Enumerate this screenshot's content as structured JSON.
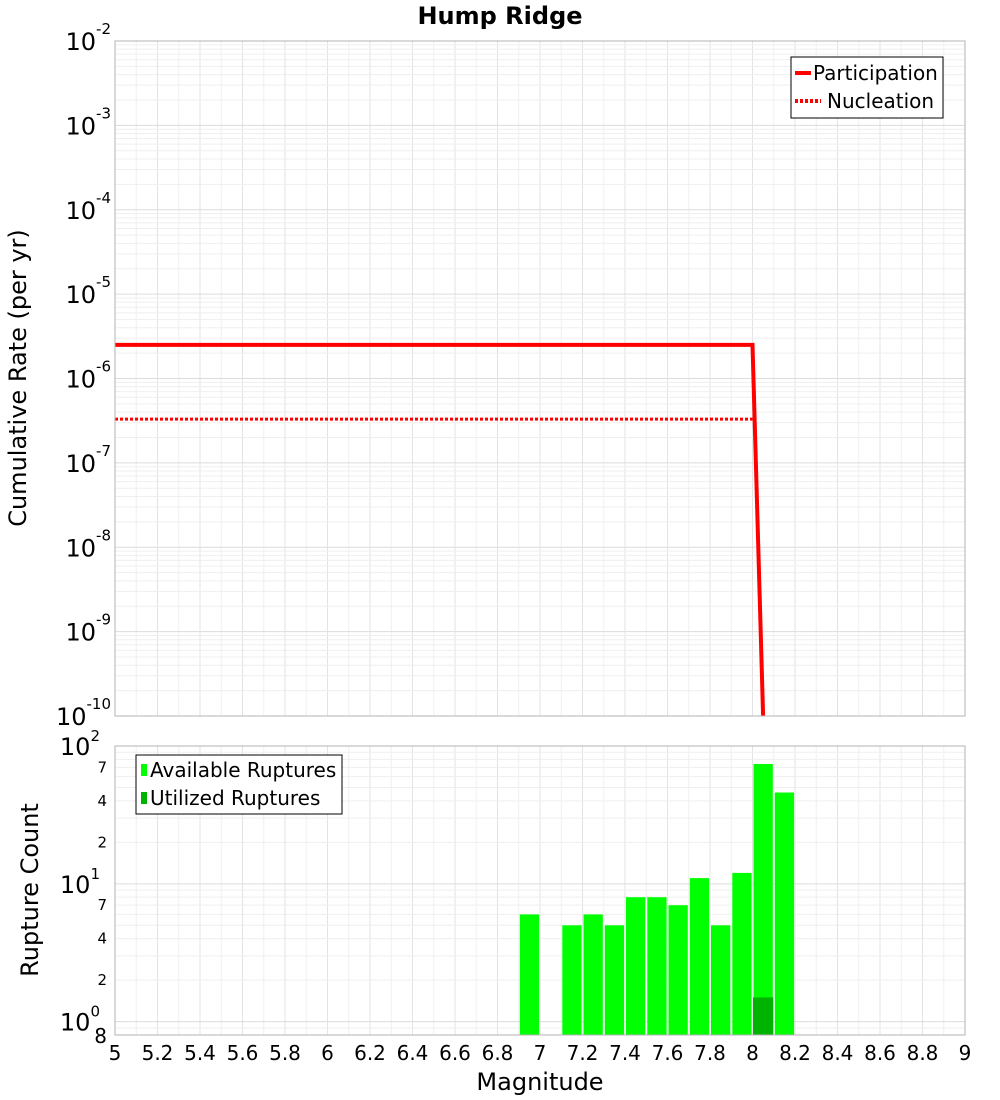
{
  "chart_data": [
    {
      "type": "line",
      "title": "Hump Ridge",
      "xlabel": "",
      "ylabel": "Cumulative Rate (per yr)",
      "yscale": "log",
      "xlim": [
        5,
        9
      ],
      "ylim": [
        1e-10,
        0.01
      ],
      "y_ticks": [
        {
          "base": "10",
          "exp": "-10",
          "value": 1e-10
        },
        {
          "base": "10",
          "exp": "-9",
          "value": 1e-09
        },
        {
          "base": "10",
          "exp": "-8",
          "value": 1e-08
        },
        {
          "base": "10",
          "exp": "-7",
          "value": 1e-07
        },
        {
          "base": "10",
          "exp": "-6",
          "value": 1e-06
        },
        {
          "base": "10",
          "exp": "-5",
          "value": 1e-05
        },
        {
          "base": "10",
          "exp": "-4",
          "value": 0.0001
        },
        {
          "base": "10",
          "exp": "-3",
          "value": 0.001
        },
        {
          "base": "10",
          "exp": "-2",
          "value": 0.01
        }
      ],
      "legend": {
        "position": "top-right"
      },
      "series": [
        {
          "name": "Participation",
          "color": "#ff0000",
          "style": "solid",
          "x": [
            5.0,
            8.0,
            8.05
          ],
          "y": [
            2.5e-06,
            2.5e-06,
            1e-10
          ]
        },
        {
          "name": "Nucleation",
          "color": "#ff0000",
          "style": "dotted",
          "x": [
            5.0,
            8.0
          ],
          "y": [
            3.3e-07,
            3.3e-07
          ]
        }
      ]
    },
    {
      "type": "bar",
      "title": "",
      "xlabel": "Magnitude",
      "ylabel": "Rupture Count",
      "yscale": "log",
      "xlim": [
        5,
        9
      ],
      "ylim": [
        0.8,
        100
      ],
      "bar_width": 0.1,
      "x_ticks": [
        "5",
        "5.2",
        "5.4",
        "5.6",
        "5.8",
        "6",
        "6.2",
        "6.4",
        "6.6",
        "6.8",
        "7",
        "7.2",
        "7.4",
        "7.6",
        "7.8",
        "8",
        "8.2",
        "8.4",
        "8.6",
        "8.8",
        "9"
      ],
      "y_major_ticks": [
        {
          "base": "10",
          "exp": "0",
          "value": 1
        },
        {
          "base": "10",
          "exp": "1",
          "value": 10
        },
        {
          "base": "10",
          "exp": "2",
          "value": 100
        }
      ],
      "y_minor_labels": [
        {
          "label": "8",
          "value": 0.8
        },
        {
          "label": "2",
          "value": 2
        },
        {
          "label": "4",
          "value": 4
        },
        {
          "label": "7",
          "value": 7
        },
        {
          "label": "2",
          "value": 20
        },
        {
          "label": "4",
          "value": 40
        },
        {
          "label": "7",
          "value": 70
        }
      ],
      "legend": {
        "position": "top-left"
      },
      "series": [
        {
          "name": "Available Ruptures",
          "color": "#00ff00",
          "x": [
            6.95,
            7.15,
            7.25,
            7.35,
            7.45,
            7.55,
            7.65,
            7.75,
            7.85,
            7.95,
            8.05,
            8.15
          ],
          "values": [
            6,
            5,
            6,
            5,
            8,
            8,
            7,
            11,
            5,
            12,
            74,
            46
          ]
        },
        {
          "name": "Utilized Ruptures",
          "color": "#00b300",
          "x": [
            8.05
          ],
          "values": [
            1.5
          ]
        }
      ]
    }
  ]
}
